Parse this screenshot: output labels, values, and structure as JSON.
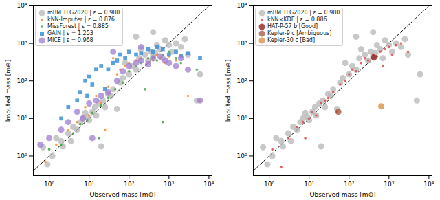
{
  "chart_data": [
    {
      "type": "scatter",
      "xlabel": "Observed mass [m⊕]",
      "ylabel": "Imputed mass [m⊕]",
      "log": true,
      "legend": "upper left",
      "xlim": [
        0.4,
        12000
      ],
      "ylim": [
        0.3,
        10000
      ],
      "xticks": [
        {
          "value": 1,
          "label": "10⁰"
        },
        {
          "value": 10,
          "label": "10¹"
        },
        {
          "value": 100,
          "label": "10²"
        },
        {
          "value": 1000,
          "label": "10³"
        },
        {
          "value": 10000,
          "label": "10⁴"
        }
      ],
      "yticks": [
        {
          "value": 1,
          "label": "10⁰"
        },
        {
          "value": 10,
          "label": "10¹"
        },
        {
          "value": 100,
          "label": "10²"
        },
        {
          "value": 1000,
          "label": "10³"
        },
        {
          "value": 10000,
          "label": "10⁴"
        }
      ],
      "series": [
        {
          "name": "mBM TLG2020 | ε = 0.980",
          "color": "#b5b5b5",
          "marker": "circle",
          "x": [
            0.7,
            0.9,
            1.2,
            1.5,
            2,
            2.2,
            3,
            3.5,
            4,
            5,
            6,
            7,
            8,
            9,
            10,
            12,
            14,
            15,
            18,
            20,
            22,
            25,
            30,
            35,
            40,
            50,
            60,
            70,
            80,
            100,
            120,
            150,
            180,
            200,
            250,
            300,
            350,
            400,
            450,
            500,
            600,
            700,
            800,
            1000,
            1200,
            1500,
            2000,
            2500,
            3000,
            5000,
            6000,
            400,
            150
          ],
          "y": [
            1.7,
            0.6,
            1.0,
            3,
            2.5,
            1.8,
            4,
            2.5,
            6,
            5,
            8,
            10,
            14,
            11,
            9,
            15,
            20,
            12,
            25,
            1.8,
            30,
            20,
            45,
            40,
            60,
            18,
            90,
            120,
            300,
            150,
            250,
            200,
            400,
            700,
            500,
            350,
            600,
            450,
            550,
            900,
            700,
            400,
            1200,
            900,
            600,
            1000,
            800,
            1300,
            500,
            30,
            150,
            2000,
            1500
          ]
        },
        {
          "name": "kNN-Imputer | ε = 0.876",
          "color": "#ff8c1a",
          "marker": "point",
          "x": [
            0.8,
            1.5,
            3,
            5,
            8,
            10,
            15,
            20,
            30,
            50,
            60,
            80,
            100,
            150,
            200,
            300,
            400,
            500,
            600,
            800,
            1000,
            1500,
            2000,
            3000,
            6000,
            25,
            40
          ],
          "y": [
            0.7,
            2,
            5,
            8,
            20,
            12,
            40,
            25,
            70,
            150,
            200,
            250,
            300,
            350,
            400,
            300,
            350,
            500,
            400,
            300,
            450,
            350,
            500,
            40,
            30,
            5,
            400
          ]
        },
        {
          "name": "MissForest | ε = 0.885",
          "color": "#3aa63a",
          "marker": "point",
          "x": [
            1,
            2,
            4,
            6,
            9,
            12,
            20,
            30,
            45,
            70,
            100,
            150,
            200,
            300,
            400,
            500,
            700,
            1000,
            1500,
            2000,
            700,
            5000,
            18,
            250
          ],
          "y": [
            1.5,
            2,
            4,
            7,
            9,
            14,
            22,
            35,
            60,
            90,
            180,
            250,
            300,
            400,
            420,
            350,
            500,
            600,
            400,
            300,
            8,
            200,
            3,
            60
          ]
        },
        {
          "name": "GAIN | ε = 1.253",
          "color": "#3b8fd9",
          "marker": "square",
          "x": [
            2,
            3,
            5,
            6,
            8,
            10,
            12,
            15,
            20,
            30,
            40,
            50,
            60,
            80,
            100,
            150,
            200,
            300,
            400,
            500,
            700,
            1000,
            1500,
            2000,
            3000,
            6000,
            9,
            25
          ],
          "y": [
            10,
            20,
            30,
            50,
            100,
            130,
            80,
            200,
            250,
            200,
            300,
            350,
            500,
            400,
            600,
            500,
            550,
            700,
            600,
            800,
            700,
            500,
            600,
            450,
            550,
            400,
            40,
            60
          ]
        },
        {
          "name": "MICE | ε = 0.968",
          "color": "#a07cd0",
          "marker": "circle",
          "x": [
            0.6,
            1,
            2,
            3,
            5,
            7,
            10,
            15,
            20,
            30,
            50,
            70,
            100,
            150,
            200,
            300,
            400,
            600,
            800,
            1000,
            1500,
            2000,
            3000,
            6000,
            12,
            200,
            40
          ],
          "y": [
            2,
            3,
            5,
            8,
            15,
            10,
            25,
            30,
            40,
            50,
            100,
            180,
            250,
            300,
            350,
            280,
            400,
            450,
            350,
            300,
            250,
            400,
            200,
            30,
            3,
            800,
            600
          ]
        }
      ]
    },
    {
      "type": "scatter",
      "xlabel": "Observed mass [m⊕]",
      "ylabel": "Imputed mass [m⊕]",
      "log": true,
      "legend": "upper left",
      "xlim": [
        0.4,
        12000
      ],
      "ylim": [
        0.3,
        10000
      ],
      "xticks": [
        {
          "value": 1,
          "label": "10⁰"
        },
        {
          "value": 10,
          "label": "10¹"
        },
        {
          "value": 100,
          "label": "10²"
        },
        {
          "value": 1000,
          "label": "10³"
        },
        {
          "value": 10000,
          "label": "10⁴"
        }
      ],
      "yticks": [
        {
          "value": 1,
          "label": "10⁰"
        },
        {
          "value": 10,
          "label": "10¹"
        },
        {
          "value": 100,
          "label": "10²"
        },
        {
          "value": 1000,
          "label": "10³"
        },
        {
          "value": 10000,
          "label": "10⁴"
        }
      ],
      "series": [
        {
          "name": "mBM TLG2020 | ε = 0.980",
          "color": "#b5b5b5",
          "marker": "circle",
          "x": [
            0.7,
            0.9,
            1.2,
            1.5,
            2,
            2.2,
            3,
            3.5,
            4,
            5,
            6,
            7,
            8,
            9,
            10,
            12,
            14,
            15,
            18,
            20,
            22,
            25,
            30,
            35,
            40,
            50,
            60,
            70,
            80,
            100,
            120,
            150,
            180,
            200,
            250,
            300,
            350,
            400,
            450,
            500,
            600,
            700,
            800,
            1000,
            1200,
            1500,
            2000,
            2500,
            3000,
            5000,
            6000,
            400,
            150
          ],
          "y": [
            1.7,
            0.6,
            1.0,
            3,
            2.5,
            1.8,
            4,
            2.5,
            6,
            5,
            8,
            10,
            14,
            11,
            9,
            15,
            20,
            12,
            25,
            1.8,
            30,
            20,
            45,
            40,
            60,
            18,
            90,
            120,
            300,
            150,
            250,
            200,
            400,
            700,
            500,
            350,
            600,
            450,
            550,
            900,
            700,
            400,
            1200,
            900,
            600,
            1000,
            800,
            1300,
            500,
            30,
            150,
            2000,
            1500
          ]
        },
        {
          "name": "kNN×KDE | ε = 0.886",
          "color": "#e04848",
          "marker": "point",
          "x": [
            1.2,
            2,
            3,
            5,
            7,
            10,
            12,
            15,
            20,
            25,
            30,
            40,
            60,
            80,
            100,
            120,
            150,
            200,
            250,
            300,
            400,
            500,
            600,
            800,
            1000,
            1200,
            1500,
            2000,
            3000,
            8,
            50,
            700
          ],
          "y": [
            1.5,
            0.5,
            3,
            6,
            8,
            10,
            15,
            12,
            25,
            30,
            35,
            50,
            80,
            100,
            150,
            200,
            180,
            300,
            400,
            350,
            500,
            450,
            600,
            700,
            800,
            500,
            900,
            1000,
            600,
            3,
            15,
            250
          ]
        },
        {
          "name": "HAT-P-57 b [Good]",
          "color": "#8c1414",
          "marker": "circle",
          "x": [
            420
          ],
          "y": [
            420
          ]
        },
        {
          "name": "Kepler-9 c [Ambiguous]",
          "color": "#a0523a",
          "marker": "circle",
          "x": [
            54
          ],
          "y": [
            15
          ]
        },
        {
          "name": "Kepler-30 c [Bad]",
          "color": "#d98a3a",
          "marker": "circle",
          "x": [
            640
          ],
          "y": [
            21
          ]
        }
      ]
    }
  ]
}
